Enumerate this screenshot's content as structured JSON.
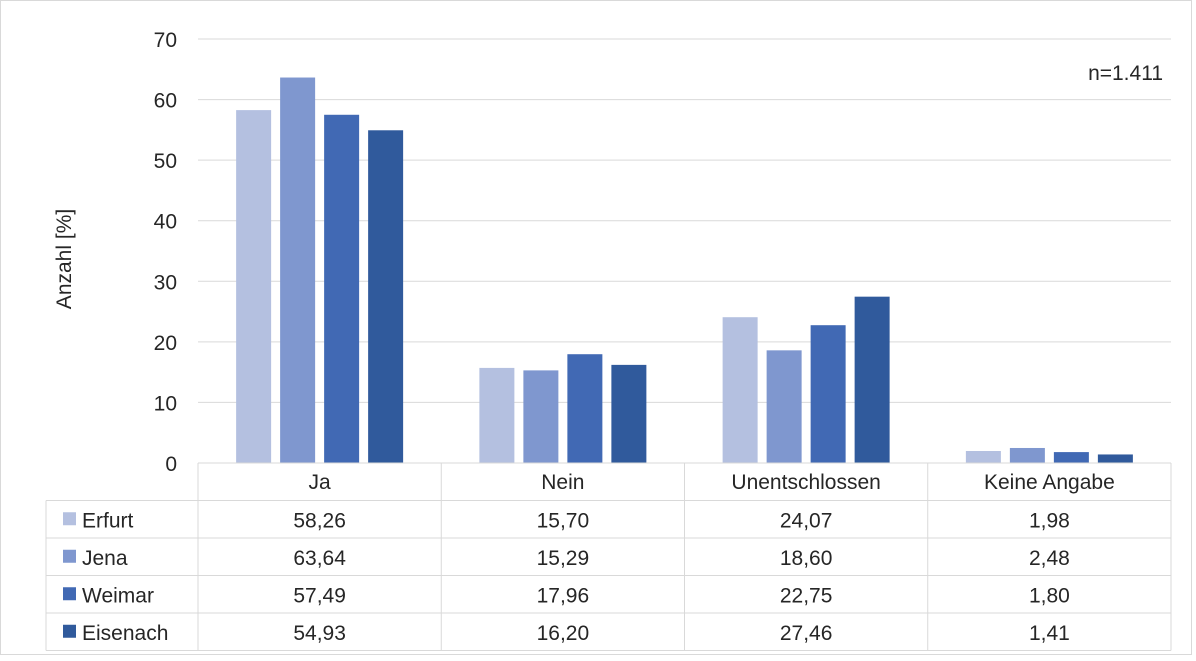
{
  "chart_data": {
    "type": "bar",
    "categories": [
      "Ja",
      "Nein",
      "Unentschlossen",
      "Keine Angabe"
    ],
    "series": [
      {
        "name": "Erfurt",
        "values": [
          58.26,
          15.7,
          24.07,
          1.98
        ],
        "labels": [
          "58,26",
          "15,70",
          "24,07",
          "1,98"
        ],
        "color": "#b4c0e0"
      },
      {
        "name": "Jena",
        "values": [
          63.64,
          15.29,
          18.6,
          2.48
        ],
        "labels": [
          "63,64",
          "15,29",
          "18,60",
          "2,48"
        ],
        "color": "#7f97cf"
      },
      {
        "name": "Weimar",
        "values": [
          57.49,
          17.96,
          22.75,
          1.8
        ],
        "labels": [
          "57,49",
          "17,96",
          "22,75",
          "1,80"
        ],
        "color": "#4169b4"
      },
      {
        "name": "Eisenach",
        "values": [
          54.93,
          16.2,
          27.46,
          1.41
        ],
        "labels": [
          "54,93",
          "16,20",
          "27,46",
          "1,41"
        ],
        "color": "#305a9c"
      }
    ],
    "ylabel": "Anzahl [%]",
    "ylim": [
      0,
      70
    ],
    "yticks": [
      "0",
      "10",
      "20",
      "30",
      "40",
      "50",
      "60",
      "70"
    ],
    "annotation": "n=1.411",
    "grid": true,
    "legend": "data-table"
  }
}
